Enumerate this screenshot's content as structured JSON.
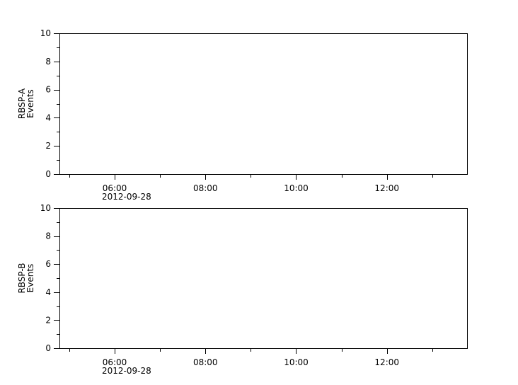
{
  "chart_data": [
    {
      "type": "line",
      "ylabel": [
        "RBSP-A",
        "Events"
      ],
      "ylim": [
        0,
        10
      ],
      "yticks": [
        "0",
        "2",
        "4",
        "6",
        "8",
        "10"
      ],
      "xlim": [
        "2012-09-28 04:47",
        "2012-09-28 13:46"
      ],
      "xticks": [
        "06:00",
        "08:00",
        "10:00",
        "12:00"
      ],
      "xdate_label": "2012-09-28",
      "series": [],
      "grid": false
    },
    {
      "type": "line",
      "ylabel": [
        "RBSP-B",
        "Events"
      ],
      "ylim": [
        0,
        10
      ],
      "yticks": [
        "0",
        "2",
        "4",
        "6",
        "8",
        "10"
      ],
      "xlim": [
        "2012-09-28 04:47",
        "2012-09-28 13:46"
      ],
      "xticks": [
        "06:00",
        "08:00",
        "10:00",
        "12:00"
      ],
      "xdate_label": "2012-09-28",
      "series": [],
      "grid": false
    }
  ]
}
